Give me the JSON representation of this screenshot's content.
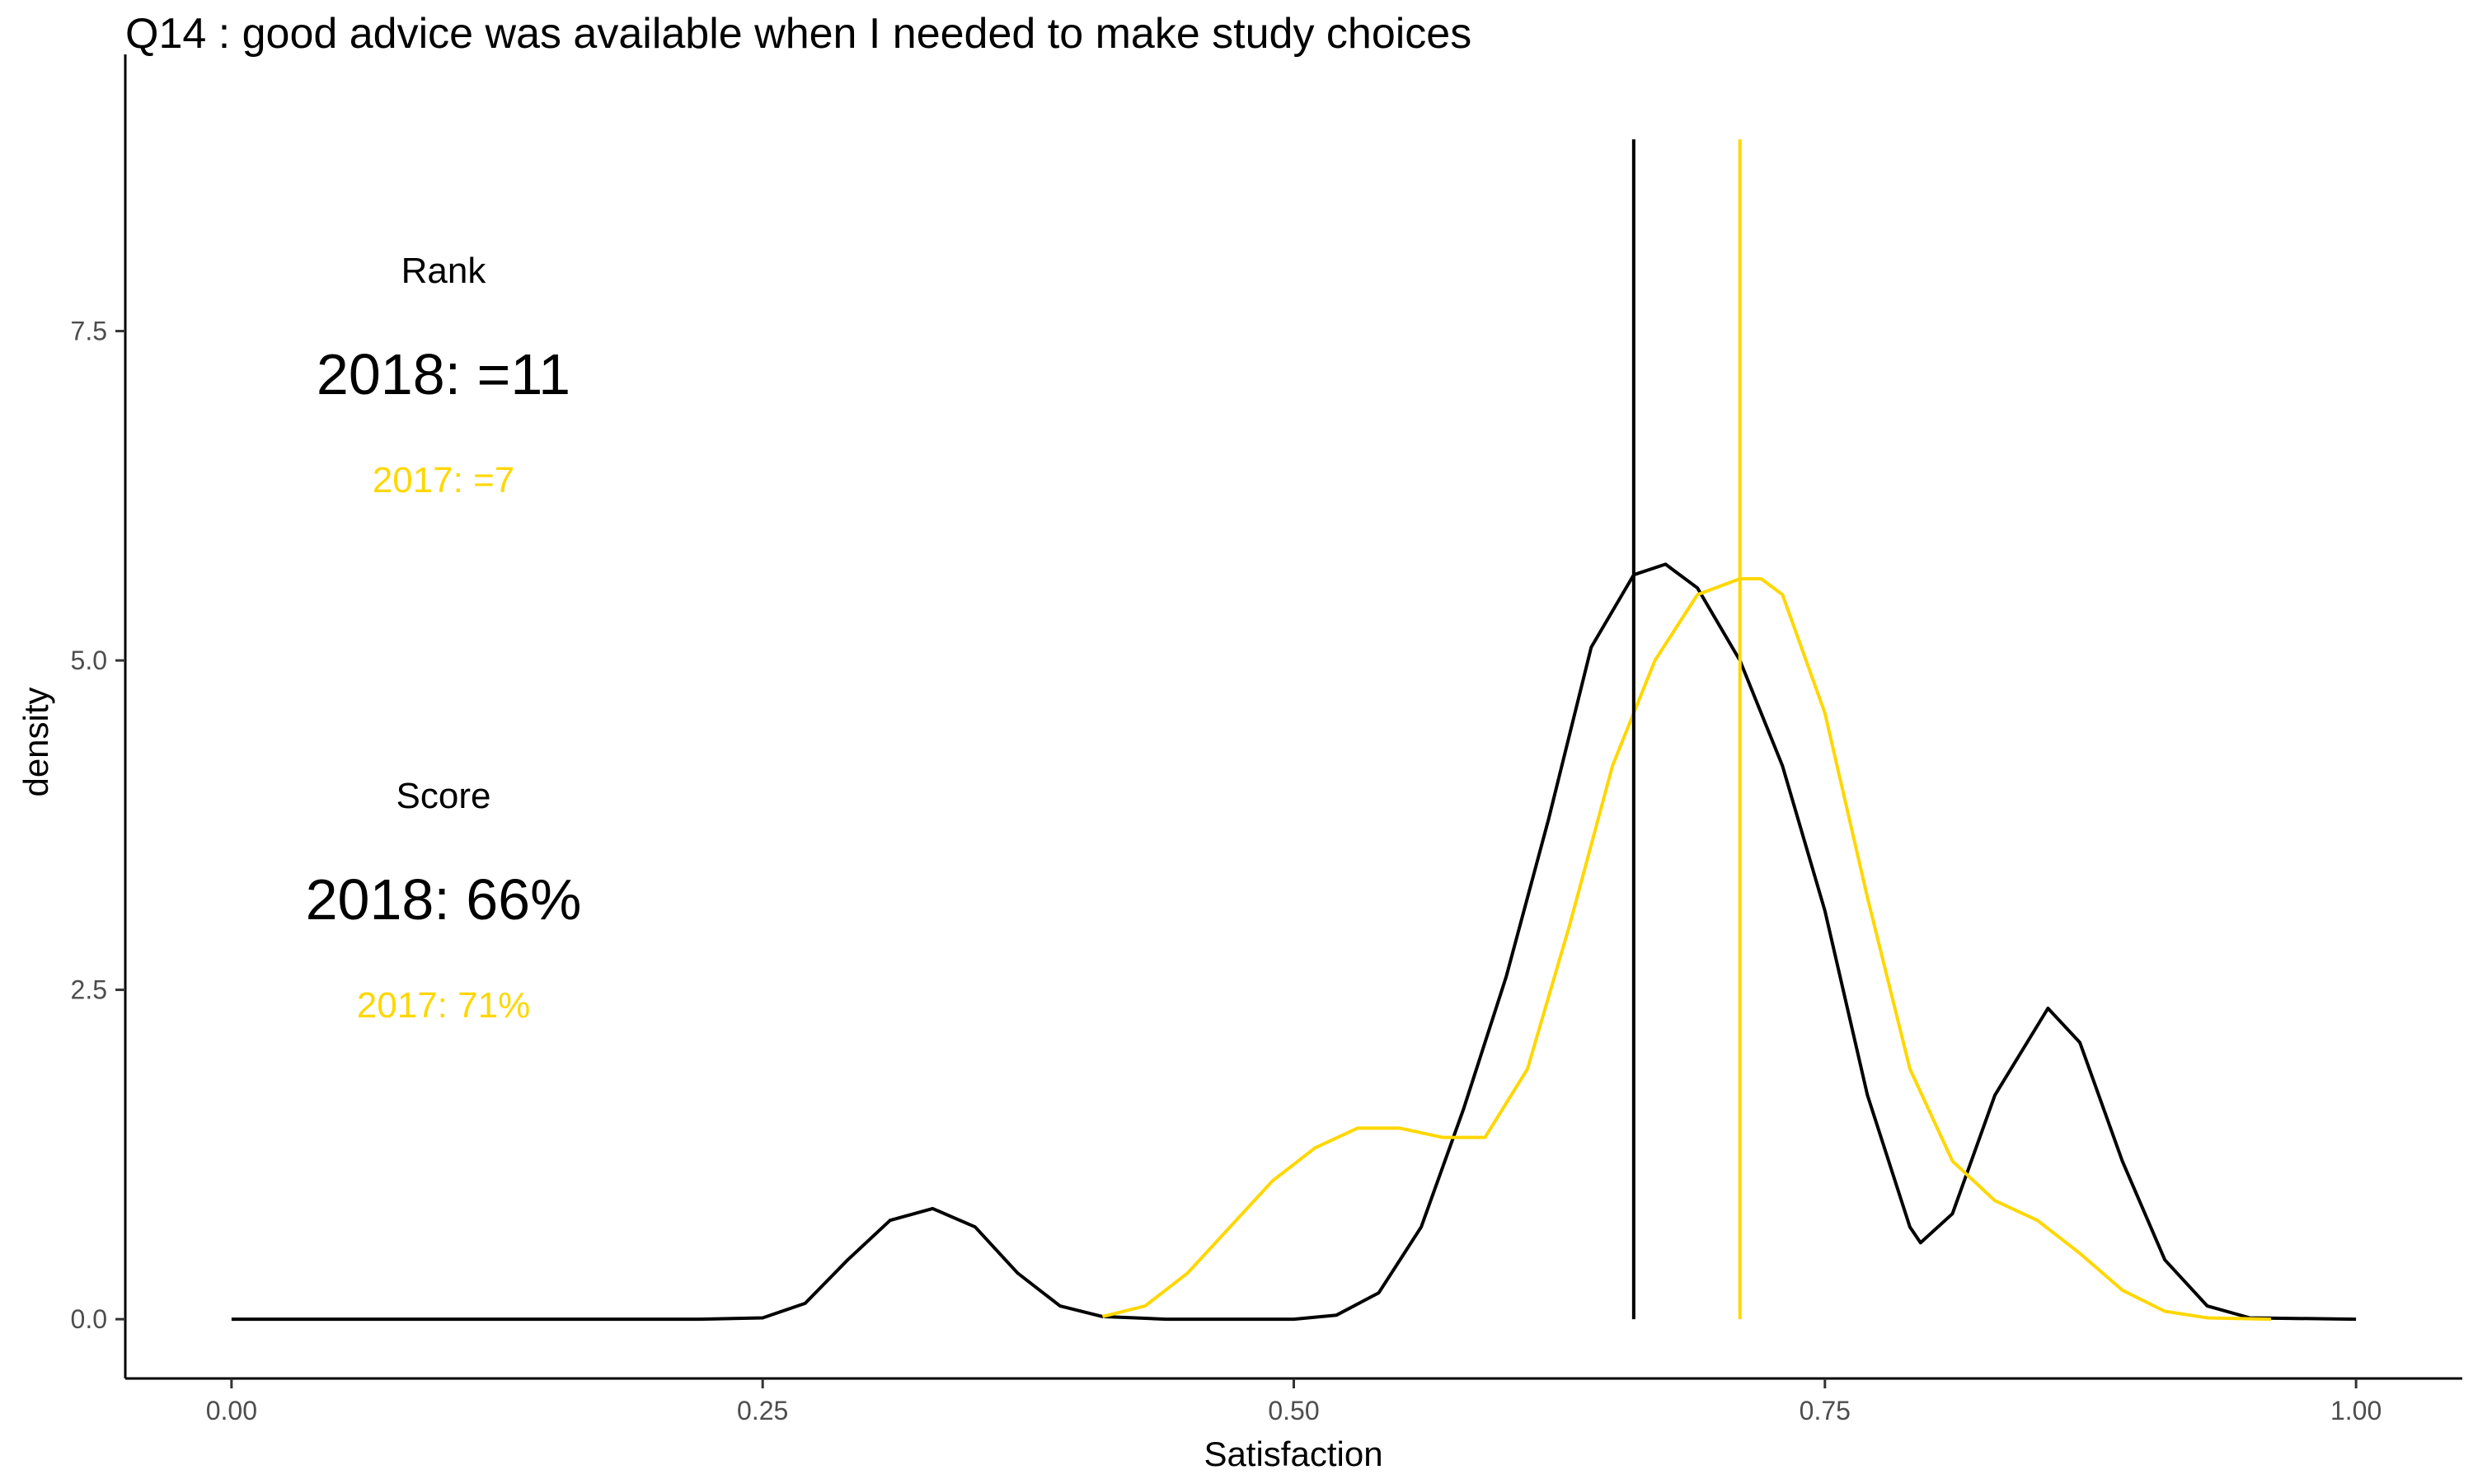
{
  "chart_data": {
    "type": "line",
    "title": "Q14 :   good advice was available when I needed to make study choices",
    "xlabel": "Satisfaction",
    "ylabel": "density",
    "xlim": [
      -0.05,
      1.05
    ],
    "ylim": [
      -0.45,
      9.6
    ],
    "x_ticks": [
      0.0,
      0.25,
      0.5,
      0.75,
      1.0
    ],
    "x_tick_labels": [
      "0.00",
      "0.25",
      "0.50",
      "0.75",
      "1.00"
    ],
    "y_ticks": [
      0.0,
      2.5,
      5.0,
      7.5
    ],
    "y_tick_labels": [
      "0.0",
      "2.5",
      "5.0",
      "7.5"
    ],
    "grid": false,
    "colors": {
      "series_2018": "#000000",
      "series_2017": "#FFD700"
    },
    "series": [
      {
        "color": "#000000",
        "x": [
          0.0,
          0.22,
          0.25,
          0.27,
          0.29,
          0.31,
          0.33,
          0.35,
          0.37,
          0.39,
          0.41,
          0.44,
          0.47,
          0.5,
          0.52,
          0.54,
          0.56,
          0.58,
          0.6,
          0.62,
          0.64,
          0.66,
          0.675,
          0.69,
          0.71,
          0.73,
          0.75,
          0.77,
          0.79,
          0.795,
          0.81,
          0.83,
          0.855,
          0.87,
          0.89,
          0.91,
          0.93,
          0.95,
          1.0
        ],
        "y": [
          0.0,
          0.0,
          0.01,
          0.12,
          0.45,
          0.75,
          0.84,
          0.7,
          0.35,
          0.1,
          0.02,
          0.0,
          0.0,
          0.0,
          0.03,
          0.2,
          0.7,
          1.6,
          2.6,
          3.8,
          5.1,
          5.65,
          5.73,
          5.55,
          5.0,
          4.2,
          3.1,
          1.7,
          0.7,
          0.58,
          0.8,
          1.7,
          2.36,
          2.1,
          1.2,
          0.45,
          0.1,
          0.01,
          0.0
        ]
      },
      {
        "color": "#FFD700",
        "x": [
          0.41,
          0.43,
          0.45,
          0.47,
          0.49,
          0.51,
          0.53,
          0.55,
          0.57,
          0.59,
          0.61,
          0.63,
          0.65,
          0.67,
          0.69,
          0.71,
          0.72,
          0.73,
          0.75,
          0.77,
          0.79,
          0.81,
          0.83,
          0.85,
          0.87,
          0.89,
          0.91,
          0.93,
          0.96
        ],
        "y": [
          0.02,
          0.1,
          0.35,
          0.7,
          1.05,
          1.3,
          1.45,
          1.45,
          1.38,
          1.38,
          1.9,
          3.0,
          4.2,
          5.0,
          5.5,
          5.62,
          5.62,
          5.5,
          4.6,
          3.2,
          1.9,
          1.2,
          0.9,
          0.75,
          0.5,
          0.22,
          0.06,
          0.01,
          0.0
        ]
      }
    ],
    "vlines": [
      {
        "x": 0.66,
        "color": "#000000"
      },
      {
        "x": 0.71,
        "color": "#FFD700"
      }
    ],
    "annotations": {
      "rank_label": "Rank",
      "rank_2018": "2018: =11",
      "rank_2017": "2017: =7",
      "score_label": "Score",
      "score_2018": "2018: 66%",
      "score_2017": "2017: 71%"
    }
  }
}
